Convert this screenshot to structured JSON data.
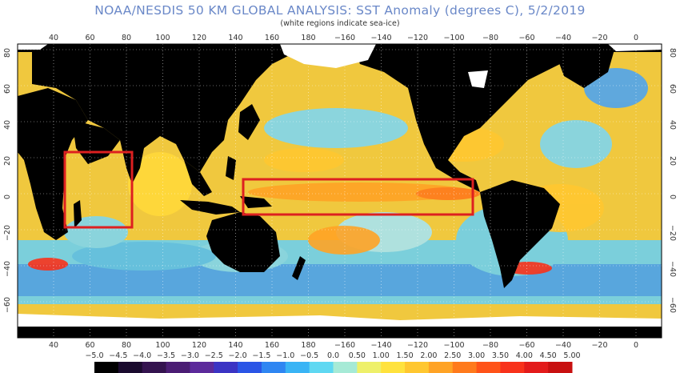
{
  "title": "NOAA/NESDIS 50 KM GLOBAL ANALYSIS: SST Anomaly (degrees C), 5/2/2019",
  "subtitle": "(white regions indicate sea-ice)",
  "lon_ticks": [
    "40",
    "60",
    "80",
    "100",
    "120",
    "140",
    "160",
    "180",
    "−160",
    "−140",
    "−120",
    "−100",
    "−80",
    "−60",
    "−40",
    "−20",
    "0"
  ],
  "lat_ticks_left": [
    "80",
    "60",
    "40",
    "20",
    "0",
    "−20",
    "−40",
    "−60"
  ],
  "lat_ticks_right": [
    "80",
    "60",
    "40",
    "20",
    "0",
    "−20",
    "−40",
    "−60"
  ],
  "colorbar": {
    "labels": [
      "−5.0",
      "−4.5",
      "−4.0",
      "−3.5",
      "−3.0",
      "−2.5",
      "−2.0",
      "−1.5",
      "−1.0",
      "−0.5",
      "0.0",
      "0.50",
      "1.00",
      "1.50",
      "2.00",
      "2.50",
      "3.00",
      "3.50",
      "4.00",
      "4.50",
      "5.00"
    ],
    "colors": [
      "#000000",
      "#1a0a2e",
      "#34134f",
      "#4b1d74",
      "#5c2a9b",
      "#3b34c4",
      "#2a55e6",
      "#2f86f2",
      "#39b4f5",
      "#5fd8f2",
      "#a6ead6",
      "#eef06a",
      "#ffe23d",
      "#ffc730",
      "#ffa325",
      "#ff7a1c",
      "#ff5318",
      "#f8321b",
      "#e31b1b",
      "#c81010"
    ]
  },
  "colors": {
    "land": "#000000",
    "sea_ice": "#ffffff",
    "box": "#dd2020",
    "ocean_base": "#f2cc3a"
  }
}
